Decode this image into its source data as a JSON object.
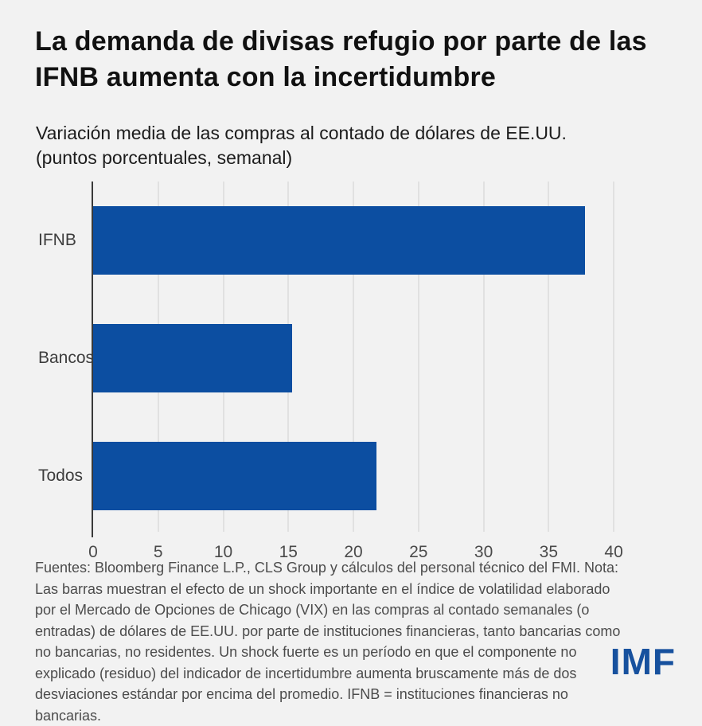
{
  "page": {
    "background": "#f2f2f2"
  },
  "header": {
    "title_line1": "La demanda de divisas refugio por parte de las",
    "title_line2": "IFNB aumenta con la incertidumbre",
    "subtitle_line1": "Variación media de las compras al contado de dólares de EE.UU.",
    "subtitle_line2": "(puntos porcentuales, semanal)"
  },
  "chart_data": {
    "type": "bar",
    "orientation": "horizontal",
    "title": "La demanda de divisas refugio por parte de las IFNB aumenta con la incertidumbre",
    "subtitle": "Variación media de las compras al contado de dólares de EE.UU. (puntos porcentuales, semanal)",
    "categories": [
      "IFNB",
      "Bancos",
      "Todos"
    ],
    "values": [
      37.8,
      15.3,
      21.8
    ],
    "xlabel": "",
    "ylabel": "",
    "xlim": [
      0,
      42.5
    ],
    "xticks": [
      0,
      5,
      10,
      15,
      20,
      25,
      30,
      35,
      40
    ],
    "grid": true,
    "legend": false,
    "bar_color": "#0c4ea1",
    "axis_color": "#3a3a3a",
    "gridline_color": "#e1e1e1"
  },
  "footer": {
    "note": "Fuentes: Bloomberg Finance L.P., CLS Group y cálculos del personal técnico del FMI. Nota: Las barras muestran el efecto de un shock importante en el índice de volatilidad elaborado por el Mercado de Opciones de Chicago (VIX) en las compras al contado semanales (o entradas) de dólares de EE.UU. por parte de instituciones financieras, tanto bancarias como no bancarias, no residentes. Un shock fuerte es un período en que el componente no explicado (residuo) del indicador de incertidumbre aumenta bruscamente más de dos desviaciones estándar por encima del promedio. IFNB = instituciones financieras no bancarias.",
    "logo": "IMF",
    "logo_color": "#17519e"
  }
}
